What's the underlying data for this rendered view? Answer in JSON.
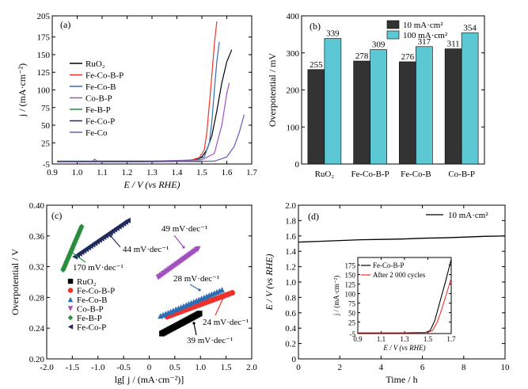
{
  "chart_data": [
    {
      "panel": "(a)",
      "type": "line",
      "xlabel": "E / V (vs RHE)",
      "ylabel": "j / (mA·cm⁻²)",
      "xlim": [
        0.9,
        1.7
      ],
      "ylim": [
        -5,
        205
      ],
      "xticks": [
        "0.9",
        "1.0",
        "1.1",
        "1.2",
        "1.3",
        "1.4",
        "1.5",
        "1.6",
        "1.7"
      ],
      "yticks": [
        "-5",
        "25",
        "50",
        "75",
        "100",
        "125",
        "150",
        "175",
        "205"
      ],
      "legend_position": "middle-left",
      "series": [
        {
          "name": "RuO₂",
          "color": "#000000",
          "x": [
            0.92,
            1.2,
            1.4,
            1.47,
            1.5,
            1.52,
            1.54,
            1.56,
            1.58,
            1.6,
            1.62
          ],
          "y": [
            -2,
            -2,
            -1,
            1,
            5,
            15,
            35,
            70,
            110,
            140,
            157
          ]
        },
        {
          "name": "Fe-Co-B-P",
          "color": "#f0312a",
          "x": [
            0.92,
            1.2,
            1.4,
            1.46,
            1.49,
            1.51,
            1.52,
            1.53,
            1.54,
            1.55,
            1.56
          ],
          "y": [
            -2,
            -2,
            -1,
            1,
            4,
            15,
            40,
            80,
            120,
            165,
            197
          ]
        },
        {
          "name": "Fe-Co-B",
          "color": "#2f6eb5",
          "x": [
            0.92,
            1.2,
            1.4,
            1.48,
            1.51,
            1.53,
            1.54,
            1.55,
            1.56,
            1.57
          ],
          "y": [
            -2,
            -2,
            -1,
            1,
            5,
            25,
            55,
            100,
            140,
            168
          ]
        },
        {
          "name": "Co-B-P",
          "color": "#a24fc0",
          "x": [
            0.92,
            1.06,
            1.07,
            1.08,
            1.1,
            1.3,
            1.5,
            1.55,
            1.58,
            1.6,
            1.61
          ],
          "y": [
            -2,
            -2,
            2,
            -1,
            -1,
            -1,
            1,
            10,
            50,
            95,
            110
          ]
        },
        {
          "name": "Fe-B-P",
          "color": "#2a8c3c",
          "x": [
            0.92,
            1.3,
            1.5
          ],
          "y": [
            -1,
            -1,
            -1
          ]
        },
        {
          "name": "Fe-Co-P",
          "color": "#1f2a5a",
          "x": [
            0.92,
            1.3,
            1.5
          ],
          "y": [
            -1.5,
            -1.5,
            -1.5
          ]
        },
        {
          "name": "Fe-Co",
          "color": "#6a5ab8",
          "x": [
            0.92,
            1.3,
            1.55,
            1.6,
            1.63,
            1.65,
            1.67
          ],
          "y": [
            -2,
            -2,
            -1,
            5,
            20,
            40,
            65
          ]
        }
      ]
    },
    {
      "panel": "(b)",
      "type": "bar",
      "ylabel": "Overpotential / mV",
      "ylim": [
        0,
        400
      ],
      "yticks": [
        "0",
        "100",
        "200",
        "300",
        "400"
      ],
      "categories": [
        "RuO₂",
        "Fe-Co-B-P",
        "Fe-Co-B",
        "Co-B-P"
      ],
      "legend_position": "top-right",
      "series": [
        {
          "name": "10 mA·cm²",
          "color": "#333333",
          "values": [
            255,
            278,
            276,
            311
          ],
          "labels": [
            "255",
            "278",
            "276",
            "311"
          ]
        },
        {
          "name": "100 mA·cm²",
          "color": "#5cc8d4",
          "values": [
            339,
            309,
            317,
            354
          ],
          "labels": [
            "339",
            "309",
            "317",
            "354"
          ]
        }
      ]
    },
    {
      "panel": "(c)",
      "type": "scatter",
      "xlabel": "lg[ j / (mA·cm⁻²)]",
      "ylabel": "Overpotential / V",
      "xlim": [
        -2.0,
        2.0
      ],
      "ylim": [
        0.2,
        0.4
      ],
      "xticks": [
        "-2.0",
        "-1.5",
        "-1.0",
        "-0.5",
        "0",
        "0.5",
        "1.0",
        "1.5",
        "2.0"
      ],
      "yticks": [
        "0.20",
        "0.24",
        "0.28",
        "0.32",
        "0.36",
        "0.40"
      ],
      "legend_position": "bottom-right",
      "series": [
        {
          "name": "RuO₂",
          "color": "#000000",
          "marker": "square",
          "x0": 0.25,
          "x1": 0.98,
          "y0": 0.233,
          "y1": 0.259,
          "tafel": "39 mV·dec⁻¹"
        },
        {
          "name": "Fe-Co-B-P",
          "color": "#f0312a",
          "marker": "circle",
          "x0": 0.35,
          "x1": 1.62,
          "y0": 0.255,
          "y1": 0.286,
          "tafel": "24 mV·dec⁻¹"
        },
        {
          "name": "Fe-Co-B",
          "color": "#2f6eb5",
          "marker": "triangle-up",
          "x0": 0.22,
          "x1": 1.42,
          "y0": 0.256,
          "y1": 0.29,
          "tafel": "28 mV·dec⁻¹"
        },
        {
          "name": "Co-B-P",
          "color": "#a24fc0",
          "marker": "triangle-down",
          "x0": 0.18,
          "x1": 0.95,
          "y0": 0.306,
          "y1": 0.343,
          "tafel": "49 mV·dec⁻¹"
        },
        {
          "name": "Fe-B-P",
          "color": "#2a8c3c",
          "marker": "diamond",
          "x0": -1.68,
          "x1": -1.32,
          "y0": 0.316,
          "y1": 0.372,
          "tafel": "170 mV·dec⁻¹"
        },
        {
          "name": "Fe-Co-P",
          "color": "#1f2a5a",
          "marker": "triangle-left",
          "x0": -1.45,
          "x1": -0.42,
          "y0": 0.333,
          "y1": 0.38,
          "tafel": "44 mV·dec⁻¹"
        }
      ]
    },
    {
      "panel": "(d)",
      "type": "line",
      "xlabel": "Time / h",
      "ylabel": "E / V (vs RHE)",
      "xlim": [
        0,
        10
      ],
      "ylim": [
        0,
        2.0
      ],
      "xticks": [
        "0",
        "2",
        "4",
        "6",
        "8",
        "10"
      ],
      "yticks": [
        "0",
        "0.2",
        "0.4",
        "0.6",
        "0.8",
        "1.0",
        "1.2",
        "1.4",
        "1.6",
        "1.8",
        "2.0"
      ],
      "legend_position": "top-right",
      "series": [
        {
          "name": "10 mA·cm²",
          "color": "#000000",
          "x": [
            0,
            1,
            2,
            3,
            4,
            5,
            6,
            7,
            8,
            9,
            10
          ],
          "y": [
            1.52,
            1.53,
            1.54,
            1.55,
            1.555,
            1.56,
            1.57,
            1.575,
            1.585,
            1.595,
            1.6
          ]
        }
      ],
      "inset": {
        "type": "line",
        "xlabel": "E / V (vs RHE)",
        "ylabel": "j / (mA·cm⁻²)",
        "xlim": [
          0.9,
          1.7
        ],
        "ylim": [
          -5,
          195
        ],
        "xticks": [
          "0.9",
          "1.1",
          "1.3",
          "1.5",
          "1.7"
        ],
        "yticks": [
          "-5",
          "25",
          "50",
          "75",
          "100",
          "125",
          "150",
          "175"
        ],
        "series": [
          {
            "name": "Fe-Co-B-P",
            "color": "#000000",
            "x": [
              0.9,
              1.3,
              1.48,
              1.52,
              1.56,
              1.6,
              1.65,
              1.7
            ],
            "y": [
              -3,
              -3,
              -2,
              3,
              30,
              75,
              130,
              190
            ]
          },
          {
            "name": "After 2 000 cycles",
            "color": "#f0312a",
            "x": [
              0.9,
              1.3,
              1.5,
              1.54,
              1.58,
              1.62,
              1.66,
              1.7
            ],
            "y": [
              -3,
              -3,
              -2,
              3,
              25,
              60,
              100,
              140
            ]
          }
        ]
      }
    }
  ]
}
